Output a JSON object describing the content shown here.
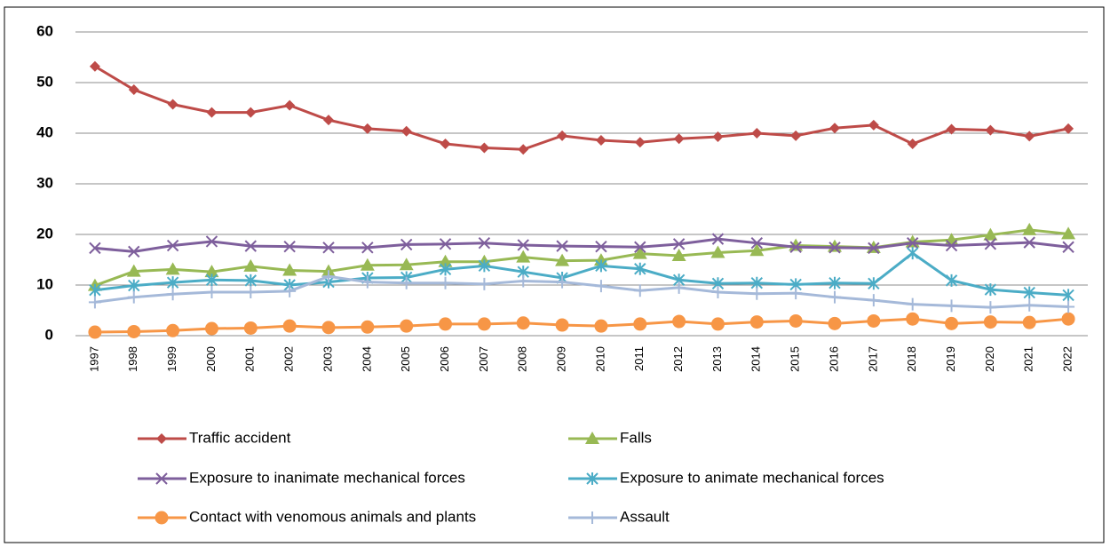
{
  "chart_data": {
    "type": "line",
    "categories": [
      "1997",
      "1998",
      "1999",
      "2000",
      "2001",
      "2002",
      "2003",
      "2004",
      "2005",
      "2006",
      "2007",
      "2008",
      "2009",
      "2010",
      "2011",
      "2012",
      "2013",
      "2014",
      "2015",
      "2016",
      "2017",
      "2018",
      "2019",
      "2020",
      "2021",
      "2022"
    ],
    "ylim": [
      0,
      60
    ],
    "yticks": [
      0,
      10,
      20,
      30,
      40,
      50,
      60
    ],
    "grid": true,
    "legend": "bottom",
    "series": [
      {
        "name": "Traffic accident",
        "color": "#be4b48",
        "marker": "diamond",
        "values": [
          53.2,
          48.6,
          45.7,
          44.1,
          44.1,
          45.5,
          42.6,
          40.9,
          40.4,
          37.9,
          37.1,
          36.8,
          39.5,
          38.6,
          38.2,
          38.9,
          39.3,
          40.0,
          39.5,
          41.0,
          41.6,
          37.9,
          40.8,
          40.6,
          39.4,
          40.9
        ]
      },
      {
        "name": "Falls",
        "color": "#98b954",
        "marker": "triangle",
        "values": [
          9.9,
          12.7,
          13.1,
          12.6,
          13.7,
          12.9,
          12.7,
          13.9,
          14.0,
          14.6,
          14.6,
          15.5,
          14.8,
          14.9,
          16.2,
          15.8,
          16.4,
          16.8,
          17.8,
          17.6,
          17.4,
          18.5,
          18.9,
          19.9,
          20.9,
          20.1
        ]
      },
      {
        "name": "Exposure to inanimate mechanical forces",
        "color": "#7e5f9c",
        "marker": "x",
        "values": [
          17.3,
          16.6,
          17.8,
          18.6,
          17.7,
          17.6,
          17.4,
          17.4,
          18.0,
          18.1,
          18.3,
          17.9,
          17.7,
          17.6,
          17.5,
          18.1,
          19.1,
          18.3,
          17.5,
          17.4,
          17.3,
          18.3,
          17.8,
          18.1,
          18.4,
          17.5
        ]
      },
      {
        "name": "Exposure to animate mechanical forces",
        "color": "#4bacc6",
        "marker": "asterisk",
        "values": [
          9.0,
          9.9,
          10.5,
          11.0,
          10.9,
          10.0,
          10.6,
          11.4,
          11.5,
          13.1,
          13.8,
          12.6,
          11.4,
          13.8,
          13.2,
          11.0,
          10.3,
          10.4,
          10.1,
          10.4,
          10.3,
          16.3,
          10.9,
          9.1,
          8.5,
          8.0
        ]
      },
      {
        "name": "Contact with venomous animals and plants",
        "color": "#f79646",
        "marker": "circle",
        "values": [
          0.7,
          0.8,
          1.0,
          1.4,
          1.5,
          1.9,
          1.6,
          1.7,
          1.9,
          2.3,
          2.3,
          2.5,
          2.1,
          1.9,
          2.3,
          2.8,
          2.3,
          2.7,
          2.9,
          2.4,
          2.9,
          3.3,
          2.4,
          2.7,
          2.6,
          3.3
        ]
      },
      {
        "name": "Assault",
        "color": "#a5b9d9",
        "marker": "plus",
        "values": [
          6.6,
          7.6,
          8.2,
          8.6,
          8.6,
          8.8,
          11.7,
          10.6,
          10.4,
          10.4,
          10.2,
          10.8,
          10.6,
          9.8,
          8.9,
          9.5,
          8.6,
          8.3,
          8.4,
          7.6,
          7.0,
          6.2,
          5.9,
          5.6,
          6.0,
          5.7
        ]
      }
    ]
  }
}
